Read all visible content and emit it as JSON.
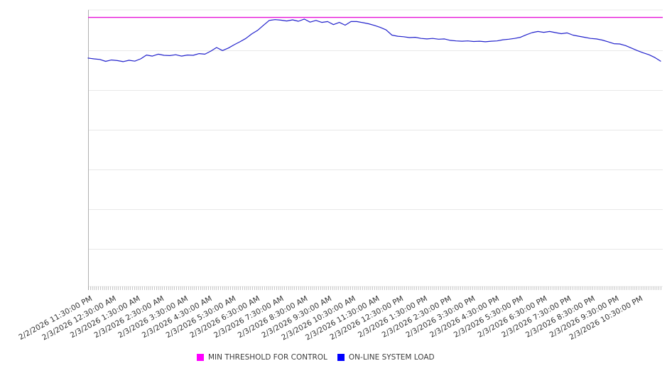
{
  "chart_data": {
    "type": "line",
    "title": "",
    "x_axis": {
      "tick_labels": [
        "2/2/2026 11:30:00 PM",
        "2/3/2026 12:30:00 AM",
        "2/3/2026 1:30:00 AM",
        "2/3/2026 2:30:00 AM",
        "2/3/2026 3:30:00 AM",
        "2/3/2026 4:30:00 AM",
        "2/3/2026 5:30:00 AM",
        "2/3/2026 6:30:00 AM",
        "2/3/2026 7:30:00 AM",
        "2/3/2026 8:30:00 AM",
        "2/3/2026 9:30:00 AM",
        "2/3/2026 10:30:00 AM",
        "2/3/2026 11:30:00 AM",
        "2/3/2026 12:30:00 PM",
        "2/3/2026 1:30:00 PM",
        "2/3/2026 2:30:00 PM",
        "2/3/2026 3:30:00 PM",
        "2/3/2026 4:30:00 PM",
        "2/3/2026 5:30:00 PM",
        "2/3/2026 6:30:00 PM",
        "2/3/2026 7:30:00 PM",
        "2/3/2026 8:30:00 PM",
        "2/3/2026 9:30:00 PM",
        "2/3/2026 10:30:00 PM"
      ],
      "label_rotation_deg": -29,
      "minor_ticks": 287
    },
    "y_axis": {
      "tick_labels_visible": false,
      "ylim": [
        0,
        100
      ],
      "horizontal_gridlines": 7,
      "grid": true
    },
    "legend_position": "bottom",
    "series": [
      {
        "name": "MIN THRESHOLD FOR CONTROL",
        "type": "threshold",
        "color": "#e60fd8",
        "value": 97.3
      },
      {
        "name": "ON-LINE SYSTEM LOAD",
        "type": "line",
        "color": "#2222cc",
        "values": [
          82.6,
          82.3,
          82.1,
          81.4,
          81.9,
          81.7,
          81.3,
          81.8,
          81.5,
          82.3,
          83.7,
          83.3,
          84.0,
          83.6,
          83.5,
          83.8,
          83.3,
          83.7,
          83.6,
          84.2,
          84.0,
          85.1,
          86.4,
          85.3,
          86.2,
          87.4,
          88.5,
          89.7,
          91.3,
          92.6,
          94.4,
          96.2,
          96.5,
          96.3,
          96.0,
          96.4,
          95.9,
          96.7,
          95.6,
          96.2,
          95.5,
          95.8,
          94.7,
          95.5,
          94.5,
          95.8,
          95.8,
          95.4,
          95.0,
          94.4,
          93.7,
          92.8,
          90.9,
          90.5,
          90.3,
          90.0,
          90.1,
          89.7,
          89.5,
          89.7,
          89.4,
          89.5,
          89.0,
          88.8,
          88.7,
          88.8,
          88.6,
          88.7,
          88.5,
          88.7,
          88.8,
          89.2,
          89.4,
          89.7,
          90.1,
          91.0,
          91.8,
          92.2,
          91.9,
          92.2,
          91.8,
          91.4,
          91.7,
          90.9,
          90.5,
          90.1,
          89.7,
          89.5,
          89.1,
          88.5,
          87.8,
          87.7,
          87.1,
          86.2,
          85.3,
          84.5,
          83.8,
          82.8,
          81.5
        ]
      }
    ]
  },
  "legend": {
    "items": [
      {
        "label": "MIN THRESHOLD FOR CONTROL",
        "color": "#ff00ff"
      },
      {
        "label": "ON-LINE SYSTEM LOAD",
        "color": "#0000ff"
      }
    ]
  },
  "colors": {
    "gridline": "#e8e8e8",
    "axis": "#b0b0b0",
    "tick": "#a0a0a0",
    "label_text": "#333333",
    "background": "#ffffff"
  }
}
